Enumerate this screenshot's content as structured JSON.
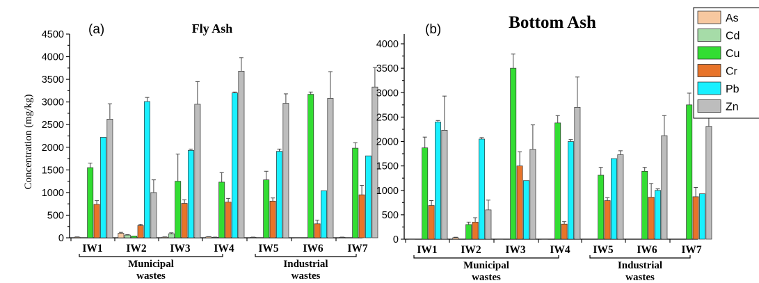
{
  "colors": {
    "As": "#f7c8a0",
    "Cd": "#a6dca8",
    "Cu": "#33dd33",
    "Cr": "#e8742a",
    "Pb": "#19f0ff",
    "Zn": "#bdbdbd"
  },
  "legend": [
    "As",
    "Cd",
    "Cu",
    "Cr",
    "Pb",
    "Zn"
  ],
  "ylabel": "Concentration (mg/kg)",
  "chart_data": [
    {
      "type": "bar",
      "panel": "(a)",
      "title": "Fly Ash",
      "ylabel": "Concentration (mg/kg)",
      "ylim": [
        0,
        4500
      ],
      "yticks": [
        0,
        500,
        1000,
        1500,
        2000,
        2500,
        3000,
        3500,
        4000,
        4500
      ],
      "categories": [
        "IW1",
        "IW2",
        "IW3",
        "IW4",
        "IW5",
        "IW6",
        "IW7"
      ],
      "groups": [
        {
          "label_line1": "Municipal",
          "label_line2": "wastes",
          "from": 0,
          "to": 3
        },
        {
          "label_line1": "Industrial",
          "label_line2": "wastes",
          "from": 4,
          "to": 6
        }
      ],
      "series": [
        {
          "name": "As",
          "values": [
            15,
            100,
            15,
            20,
            10,
            5,
            10
          ],
          "errors": [
            5,
            20,
            5,
            5,
            5,
            0,
            5
          ]
        },
        {
          "name": "Cd",
          "values": [
            5,
            60,
            90,
            10,
            5,
            0,
            5
          ],
          "errors": [
            0,
            10,
            20,
            5,
            0,
            0,
            0
          ]
        },
        {
          "name": "Cu",
          "values": [
            1550,
            40,
            1250,
            1230,
            1280,
            3170,
            1980
          ],
          "errors": [
            100,
            0,
            600,
            210,
            190,
            50,
            120
          ]
        },
        {
          "name": "Cr",
          "values": [
            740,
            270,
            760,
            790,
            810,
            310,
            950
          ],
          "errors": [
            80,
            30,
            80,
            80,
            70,
            80,
            210
          ]
        },
        {
          "name": "Pb",
          "values": [
            2220,
            3010,
            1930,
            3200,
            1910,
            1040,
            1810
          ],
          "errors": [
            0,
            90,
            30,
            20,
            50,
            0,
            0
          ]
        },
        {
          "name": "Zn",
          "values": [
            2620,
            1000,
            2950,
            3680,
            2970,
            3080,
            3330
          ],
          "errors": [
            340,
            280,
            500,
            300,
            210,
            590,
            430
          ]
        }
      ]
    },
    {
      "type": "bar",
      "panel": "(b)",
      "title": "Bottom Ash",
      "ylabel": "",
      "ylim": [
        0,
        4200
      ],
      "yticks": [
        0,
        500,
        1000,
        1500,
        2000,
        2500,
        3000,
        3500,
        4000
      ],
      "categories": [
        "IW1",
        "IW2",
        "IW3",
        "IW4",
        "IW5",
        "IW6",
        "IW7"
      ],
      "groups": [
        {
          "label_line1": "Municipal",
          "label_line2": "wastes",
          "from": 0,
          "to": 3
        },
        {
          "label_line1": "Industrial",
          "label_line2": "wastes",
          "from": 4,
          "to": 6
        }
      ],
      "series": [
        {
          "name": "As",
          "values": [
            5,
            30,
            5,
            5,
            0,
            0,
            0
          ],
          "errors": [
            0,
            10,
            0,
            0,
            0,
            0,
            0
          ]
        },
        {
          "name": "Cd",
          "values": [
            0,
            0,
            0,
            0,
            0,
            0,
            0
          ],
          "errors": [
            0,
            0,
            0,
            0,
            0,
            0,
            0
          ]
        },
        {
          "name": "Cu",
          "values": [
            1870,
            300,
            3500,
            2380,
            1310,
            1390,
            2750
          ],
          "errors": [
            220,
            50,
            290,
            150,
            160,
            80,
            240
          ]
        },
        {
          "name": "Cr",
          "values": [
            690,
            350,
            1500,
            310,
            790,
            860,
            870
          ],
          "errors": [
            100,
            90,
            290,
            50,
            60,
            280,
            190
          ]
        },
        {
          "name": "Pb",
          "values": [
            2400,
            2050,
            1200,
            2000,
            1650,
            1000,
            930
          ],
          "errors": [
            30,
            30,
            0,
            40,
            0,
            30,
            0
          ]
        },
        {
          "name": "Zn",
          "values": [
            2230,
            600,
            1840,
            2700,
            1730,
            2120,
            2310
          ],
          "errors": [
            700,
            200,
            500,
            620,
            80,
            410,
            620
          ]
        }
      ]
    }
  ]
}
